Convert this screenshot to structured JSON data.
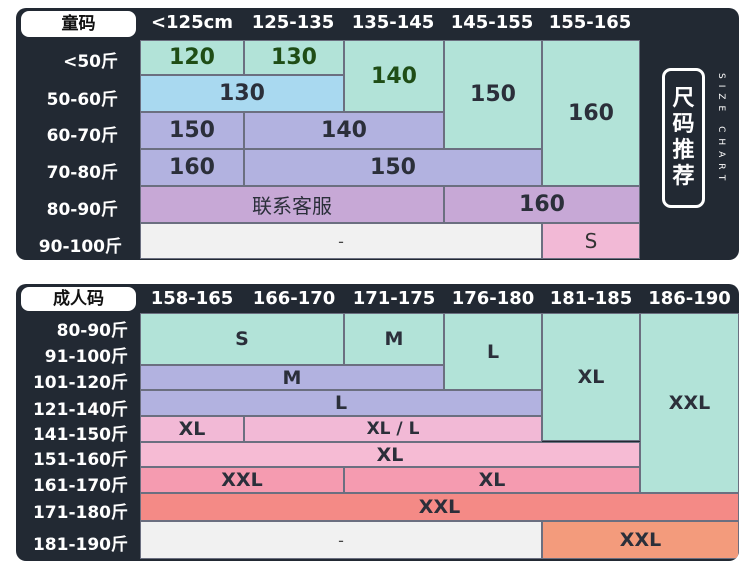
{
  "kids": {
    "title": "童码",
    "columns": [
      "<125cm",
      "125-135",
      "135-145",
      "145-155",
      "155-165"
    ],
    "rows": [
      "<50斤",
      "50-60斤",
      "60-70斤",
      "70-80斤",
      "80-90斤",
      "90-100斤"
    ],
    "cells": {
      "c120": "120",
      "c130a": "130",
      "c140a": "140",
      "c150a": "150",
      "c160a": "160",
      "c130b": "130",
      "c150b": "150",
      "c140b": "140",
      "c160b": "160",
      "c150c": "150",
      "service": "联系客服",
      "c160c": "160",
      "dash": "-",
      "s": "S"
    },
    "badge": [
      "尺",
      "码",
      "推",
      "荐"
    ],
    "badge_side": "SIZE CHART"
  },
  "adult": {
    "title": "成人码",
    "columns": [
      "158-165",
      "166-170",
      "171-175",
      "176-180",
      "181-185",
      "186-190"
    ],
    "rows": [
      "80-90斤",
      "91-100斤",
      "101-120斤",
      "121-140斤",
      "141-150斤",
      "151-160斤",
      "161-170斤",
      "171-180斤",
      "181-190斤"
    ],
    "cells": {
      "s": "S",
      "m": "M",
      "l1": "L",
      "xl1": "XL",
      "xxl1": "XXL",
      "m2": "M",
      "l2": "L",
      "xl2": "XL",
      "xll": "XL / L",
      "xl3": "XL",
      "xxl2": "XXL",
      "xl4": "XL",
      "xxl3": "XXL",
      "dash": "-",
      "xxl4": "XXL"
    }
  },
  "colors": {
    "panel": "#222933",
    "mint": "#b2e3d8",
    "lavender": "#b2b2e0",
    "pink": "#f2b9d6",
    "coral": "#f48a86",
    "orange": "#f39b7c"
  }
}
